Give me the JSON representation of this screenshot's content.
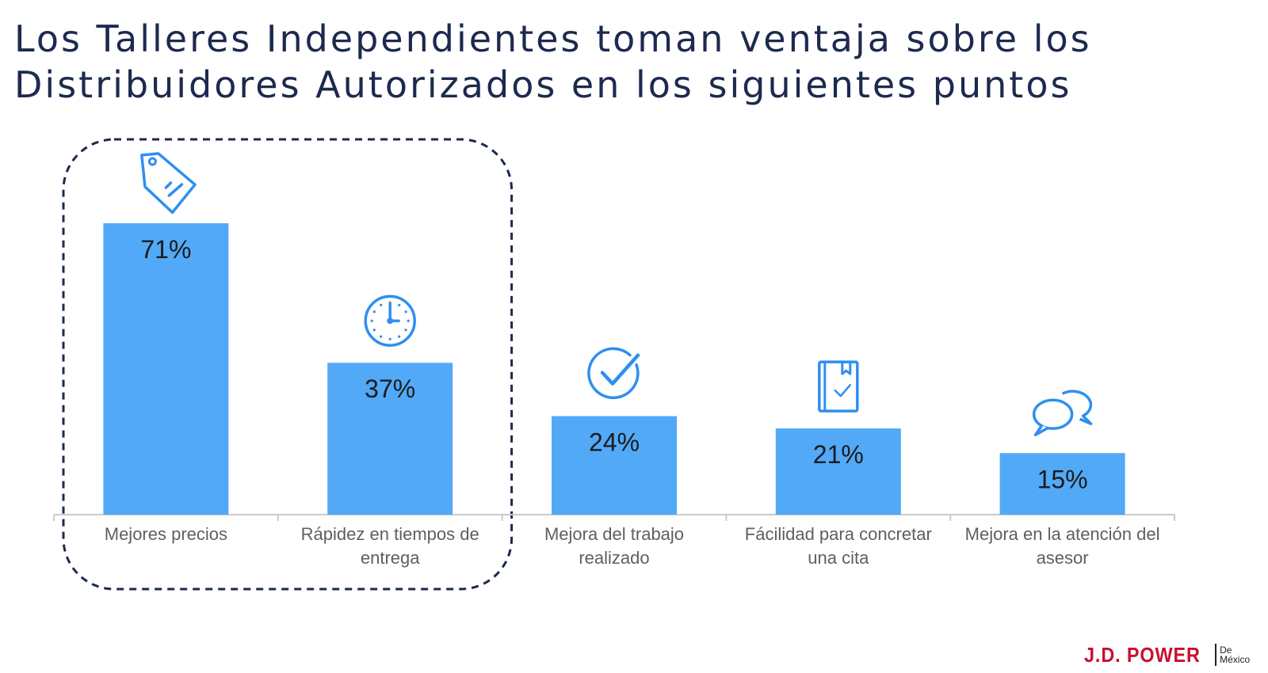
{
  "title": {
    "line1": "Los Talleres Independientes toman ventaja sobre los",
    "line2": "Distribuidores Autorizados en los siguientes puntos"
  },
  "colors": {
    "bar": "#52a9f7",
    "icon": "#2f8ff0",
    "highlight_border": "#1c2a4e",
    "title": "#1c2a4e",
    "brand": "#c8102e"
  },
  "chart_data": {
    "type": "bar",
    "categories": [
      [
        "Mejores precios"
      ],
      [
        "Rápidez en tiempos de",
        "entrega"
      ],
      [
        "Mejora del trabajo",
        "realizado"
      ],
      [
        "Fácilidad para concretar",
        "una cita"
      ],
      [
        "Mejora en la atención del",
        "asesor"
      ]
    ],
    "values": [
      71,
      37,
      24,
      21,
      15
    ],
    "value_labels": [
      "71%",
      "37%",
      "24%",
      "21%",
      "15%"
    ],
    "icons": [
      "price-tag-icon",
      "clock-icon",
      "check-circle-icon",
      "notebook-check-icon",
      "chat-bubbles-icon"
    ],
    "ylim": [
      0,
      71
    ],
    "highlighted_categories": [
      0,
      1
    ],
    "grid": false,
    "legend": "none"
  },
  "brand": {
    "name": "J.D. POWER",
    "sub1": "De",
    "sub2": "México"
  }
}
